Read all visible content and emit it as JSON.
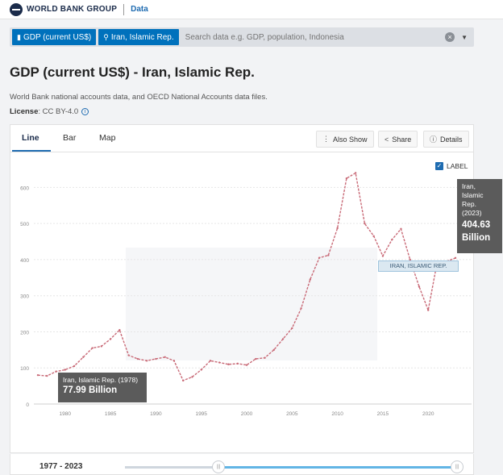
{
  "header": {
    "logo_text": "WORLD BANK GROUP",
    "data_link": "Data"
  },
  "search": {
    "indicator_chip": "GDP (current US$)",
    "country_chip": "Iran, Islamic Rep.",
    "placeholder": "Search data e.g. GDP, population, Indonesia"
  },
  "page": {
    "title": "GDP (current US$) - Iran, Islamic Rep.",
    "subtitle": "World Bank national accounts data, and OECD National Accounts data files.",
    "license_label": "License",
    "license_value": ": CC BY-4.0"
  },
  "tabs": [
    {
      "label": "Line"
    },
    {
      "label": "Bar"
    },
    {
      "label": "Map"
    }
  ],
  "toolbar": {
    "also_show": "Also Show",
    "share": "Share",
    "details": "Details"
  },
  "label_toggle": "LABEL",
  "tooltips": {
    "left": {
      "name": "Iran, Islamic Rep. (1978)",
      "value": "77.99 Billion"
    },
    "right": {
      "line1": "Iran,",
      "line2": "Islamic",
      "line3": "Rep.",
      "line4": "(2023)",
      "value1": "404.63",
      "value2": "Billion"
    }
  },
  "series_label": "IRAN, ISLAMIC REP.",
  "range": {
    "label": "1977 - 2023"
  },
  "colors": {
    "line": "#c96b78",
    "accent": "#0071bc",
    "tooltip": "#5b5b5b"
  },
  "chart_data": {
    "type": "line",
    "ylim": [
      0,
      650
    ],
    "yticks": [
      0,
      100,
      200,
      300,
      400,
      500,
      600
    ],
    "xticks": [
      1980,
      1985,
      1990,
      1995,
      2000,
      2005,
      2010,
      2015,
      2020
    ],
    "xlim": [
      1977,
      2023
    ],
    "series": [
      {
        "name": "Iran, Islamic Rep.",
        "x": [
          1977,
          1978,
          1979,
          1980,
          1981,
          1982,
          1983,
          1984,
          1985,
          1986,
          1987,
          1988,
          1989,
          1990,
          1991,
          1992,
          1993,
          1994,
          1995,
          1996,
          1997,
          1998,
          1999,
          2000,
          2001,
          2002,
          2003,
          2004,
          2005,
          2006,
          2007,
          2008,
          2009,
          2010,
          2011,
          2012,
          2013,
          2014,
          2015,
          2016,
          2017,
          2018,
          2019,
          2020,
          2021,
          2022,
          2023
        ],
        "values": [
          80,
          78,
          90,
          95,
          105,
          130,
          155,
          160,
          180,
          205,
          135,
          125,
          120,
          125,
          130,
          120,
          65,
          75,
          95,
          120,
          115,
          110,
          112,
          108,
          125,
          128,
          150,
          180,
          210,
          265,
          345,
          405,
          412,
          487,
          625,
          640,
          500,
          465,
          410,
          455,
          485,
          400,
          325,
          260,
          395,
          395,
          404.63
        ]
      }
    ]
  }
}
